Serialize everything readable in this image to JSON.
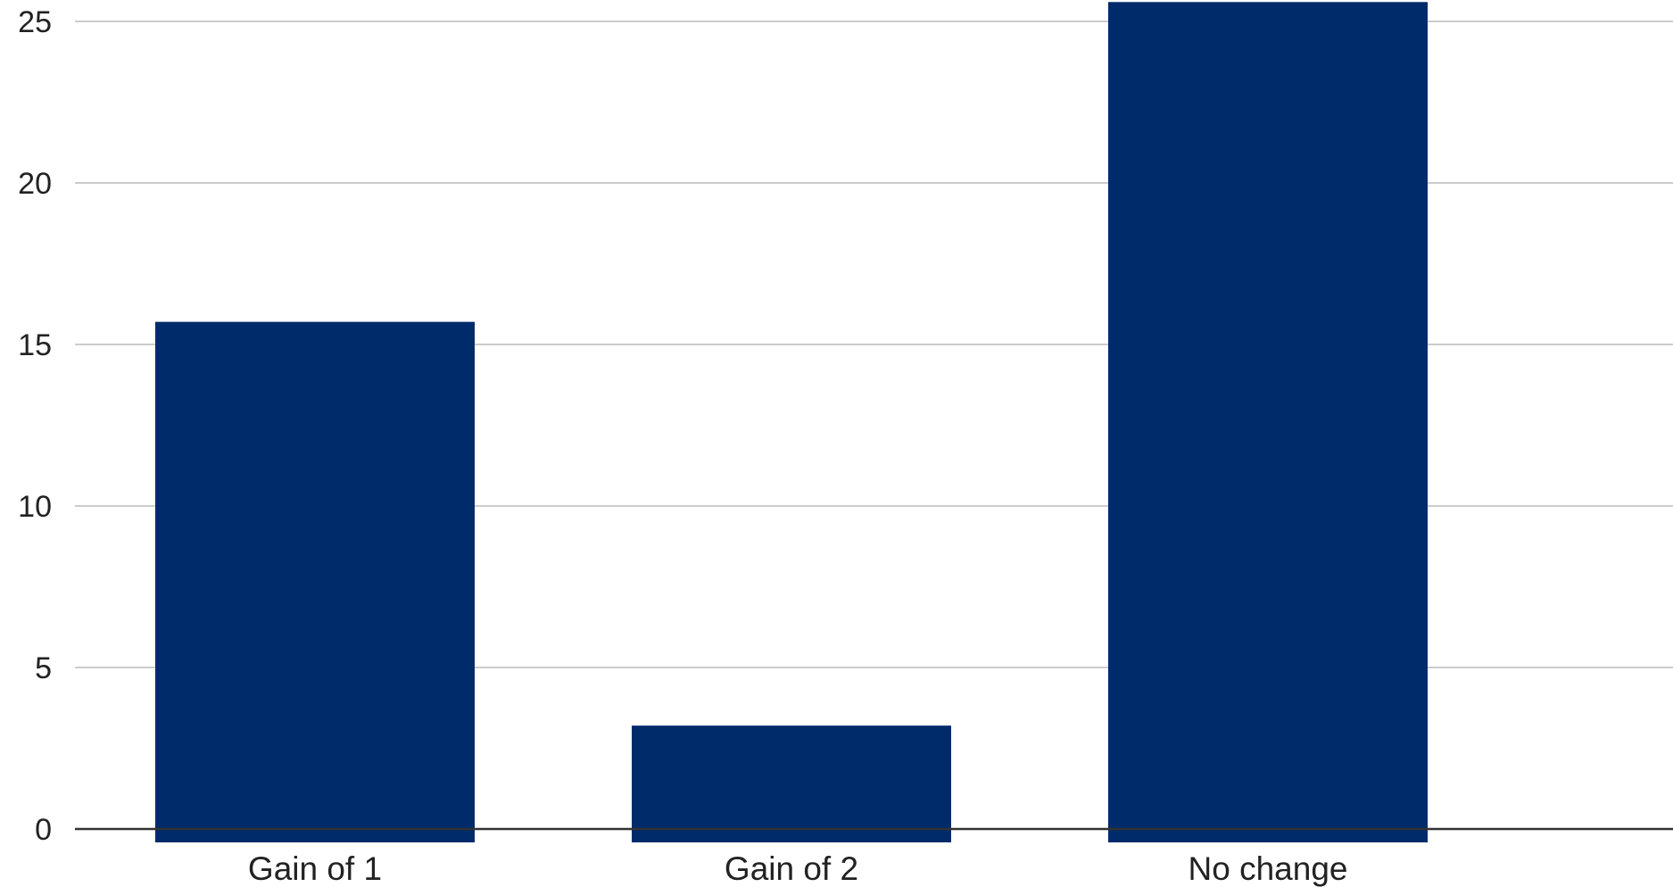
{
  "chart_data": {
    "type": "bar",
    "categories": [
      "Gain of 1",
      "Gain of 2",
      "No change"
    ],
    "values": [
      15.7,
      3.2,
      25.6
    ],
    "ylim": [
      0,
      25.6
    ],
    "yticks": [
      0,
      5,
      10,
      15,
      20,
      25
    ],
    "title": "",
    "xlabel": "",
    "ylabel": "",
    "grid": true,
    "legend": "none",
    "bar_color": "#002b6b",
    "grid_color": "#cccccc",
    "baseline_color": "#333333"
  }
}
